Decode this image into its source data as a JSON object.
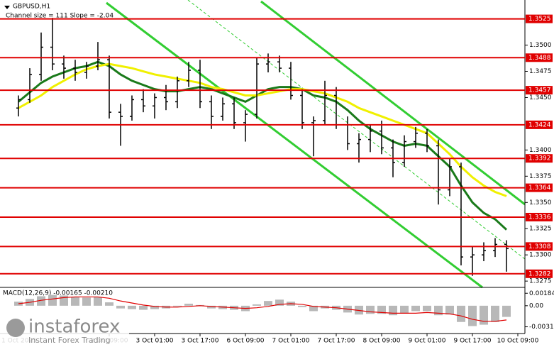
{
  "header": {
    "symbol": "GBPUSD,H1",
    "channel_info": "Channel size = 111  Slope = -2.04"
  },
  "brand": {
    "name": "instaforex",
    "tagline": "Instant Forex Trading"
  },
  "chart_data": [
    {
      "type": "candlestick",
      "categories": [
        "1 Oct 2025",
        null,
        null,
        null,
        null,
        null,
        null,
        null,
        "2 Oct 09:00",
        null,
        null,
        null,
        "3 Oct 01:00",
        null,
        null,
        null,
        "3 Oct 17:00",
        null,
        null,
        null,
        "6 Oct 09:00",
        null,
        null,
        null,
        "7 Oct 01:00",
        null,
        null,
        null,
        "7 Oct 17:00",
        null,
        null,
        null,
        "8 Oct 09:00",
        null,
        null,
        null,
        "9 Oct 01:00",
        null,
        null,
        null,
        "9 Oct 17:00",
        null,
        null,
        null,
        "10 Oct 09:00"
      ],
      "open": [
        1.344,
        1.3448,
        1.3472,
        1.3498,
        1.3482,
        1.3478,
        1.3474,
        1.348,
        1.3486,
        1.3436,
        1.3432,
        1.3448,
        1.3442,
        1.345,
        1.3446,
        1.3466,
        1.3476,
        1.3446,
        1.3432,
        1.3444,
        1.3426,
        1.3434,
        1.3482,
        1.3484,
        1.3478,
        1.3452,
        1.3426,
        1.3428,
        1.3452,
        1.3424,
        1.3406,
        1.341,
        1.3418,
        1.3402,
        1.3388,
        1.3408,
        1.3416,
        1.3404,
        1.3362,
        1.3384,
        1.3298,
        1.33,
        1.3304,
        1.331,
        null
      ],
      "high": [
        1.3452,
        1.3478,
        1.3512,
        1.3526,
        1.349,
        1.3486,
        1.3484,
        1.3503,
        1.349,
        1.3444,
        1.3452,
        1.3458,
        1.3454,
        1.3462,
        1.347,
        1.3484,
        1.3486,
        1.3452,
        1.345,
        1.345,
        1.3438,
        1.3488,
        1.3492,
        1.349,
        1.3484,
        1.3458,
        1.3432,
        1.3466,
        1.346,
        1.3432,
        1.3416,
        1.3424,
        1.3428,
        1.341,
        1.3414,
        1.3422,
        1.342,
        1.341,
        1.3392,
        1.3388,
        1.3308,
        1.3312,
        1.3316,
        1.3314,
        null
      ],
      "low": [
        1.3432,
        1.3445,
        1.3466,
        1.3476,
        1.3468,
        1.3466,
        1.3468,
        1.3476,
        1.343,
        1.3404,
        1.3428,
        1.3436,
        1.343,
        1.3438,
        1.344,
        1.346,
        1.344,
        1.342,
        1.3428,
        1.342,
        1.3408,
        1.343,
        1.3474,
        1.3474,
        1.3448,
        1.342,
        1.3394,
        1.3424,
        1.342,
        1.34,
        1.3388,
        1.3398,
        1.3396,
        1.3374,
        1.3384,
        1.3402,
        1.3398,
        1.3348,
        1.3356,
        1.329,
        1.328,
        1.3294,
        1.3298,
        1.3284,
        null
      ],
      "close": [
        1.3448,
        1.3472,
        1.3498,
        1.3482,
        1.3478,
        1.3474,
        1.348,
        1.3486,
        1.3436,
        1.3432,
        1.3448,
        1.3442,
        1.345,
        1.3446,
        1.3466,
        1.3476,
        1.3446,
        1.3432,
        1.3444,
        1.3426,
        1.3434,
        1.3482,
        1.3484,
        1.3478,
        1.3452,
        1.3426,
        1.3428,
        1.3452,
        1.3424,
        1.3406,
        1.341,
        1.3418,
        1.3402,
        1.3388,
        1.3408,
        1.3416,
        1.3404,
        1.3362,
        1.3384,
        1.3298,
        1.33,
        1.3304,
        1.331,
        1.3306,
        null
      ],
      "color": "#000000",
      "series": [
        {
          "color": "#1a7a1a",
          "values": [
            1.3446,
            1.3455,
            1.3464,
            1.347,
            1.3474,
            1.3478,
            1.348,
            1.3484,
            1.348,
            1.3472,
            1.3466,
            1.3462,
            1.3458,
            1.3456,
            1.3456,
            1.3458,
            1.346,
            1.3458,
            1.3454,
            1.345,
            1.3446,
            1.3452,
            1.3458,
            1.346,
            1.346,
            1.3458,
            1.3452,
            1.345,
            1.3446,
            1.3438,
            1.3428,
            1.342,
            1.3414,
            1.3408,
            1.3404,
            1.3406,
            1.3404,
            1.3394,
            1.3384,
            1.3366,
            1.335,
            1.334,
            1.3334,
            1.3324,
            null
          ]
        },
        {
          "color": "#f0f000",
          "values": [
            1.344,
            1.3446,
            1.3452,
            1.346,
            1.3466,
            1.3472,
            1.3477,
            1.348,
            1.3482,
            1.348,
            1.3478,
            1.3475,
            1.3472,
            1.347,
            1.3468,
            1.3466,
            1.3464,
            1.346,
            1.3458,
            1.3455,
            1.3452,
            1.3452,
            1.3454,
            1.3456,
            1.3458,
            1.3458,
            1.3456,
            1.3454,
            1.345,
            1.3446,
            1.344,
            1.3436,
            1.3432,
            1.3428,
            1.3424,
            1.342,
            1.3416,
            1.3406,
            1.3396,
            1.3384,
            1.3374,
            1.3366,
            1.336,
            1.3356,
            null
          ]
        }
      ],
      "levels": [
        {
          "value": 1.3525,
          "label": "1.3525"
        },
        {
          "value": 1.3488,
          "label": "1.3488"
        },
        {
          "value": 1.3457,
          "label": "1.3457"
        },
        {
          "value": 1.3424,
          "label": "1.3424"
        },
        {
          "value": 1.3392,
          "label": "1.3392"
        },
        {
          "value": 1.3364,
          "label": "1.3364"
        },
        {
          "value": 1.3336,
          "label": "1.3336"
        },
        {
          "value": 1.3308,
          "label": "1.3308"
        },
        {
          "value": 1.3282,
          "label": "1.3282"
        }
      ],
      "level_color": "#e00000",
      "ylim": [
        1.3269,
        1.3543
      ],
      "yticks": [
        {
          "value": 1.35,
          "label": "1.3500"
        },
        {
          "value": 1.3475,
          "label": "1.3475"
        },
        {
          "value": 1.345,
          "label": "1.3450"
        },
        {
          "value": 1.34,
          "label": "1.3400"
        },
        {
          "value": 1.3375,
          "label": "1.3375"
        },
        {
          "value": 1.335,
          "label": "1.3350"
        },
        {
          "value": 1.3325,
          "label": "1.3325"
        },
        {
          "value": 1.33,
          "label": "1.3300"
        },
        {
          "value": 1.3275,
          "label": "1.3275"
        }
      ]
    },
    {
      "type": "macd",
      "title": "MACD(12,26,9) -0.00165 -0.00210",
      "histogram": {
        "color": "#b8b8b8",
        "values": [
          0.0006,
          0.001,
          0.0014,
          0.0016,
          0.0015,
          0.0013,
          0.0012,
          0.0013,
          0.0005,
          -0.0004,
          -0.0005,
          -0.0006,
          -0.0005,
          -0.0004,
          -0.0001,
          0.0003,
          0.0001,
          -0.0004,
          -0.0005,
          -0.0006,
          -0.0008,
          0.0002,
          0.0007,
          0.0009,
          0.0006,
          -0.0002,
          -0.0008,
          -0.0004,
          -0.0006,
          -0.001,
          -0.0013,
          -0.0012,
          -0.0012,
          -0.0014,
          -0.0011,
          -0.0008,
          -0.0008,
          -0.0014,
          -0.0013,
          -0.0024,
          -0.003,
          -0.0028,
          -0.0024,
          -0.00165,
          null
        ]
      },
      "signal": {
        "color": "#e00000",
        "values": [
          0.0003,
          0.0005,
          0.0008,
          0.001,
          0.0012,
          0.0013,
          0.0013,
          0.0013,
          0.0011,
          0.0007,
          0.0004,
          0.0001,
          -0.0001,
          -0.0002,
          -0.0002,
          -0.0001,
          0.0,
          -0.0001,
          -0.0002,
          -0.0003,
          -0.0004,
          -0.0003,
          -0.0001,
          0.0002,
          0.0003,
          0.0002,
          -0.0001,
          -0.0002,
          -0.0003,
          -0.0005,
          -0.0007,
          -0.0009,
          -0.001,
          -0.0011,
          -0.0011,
          -0.0011,
          -0.001,
          -0.0011,
          -0.0012,
          -0.0015,
          -0.002,
          -0.0023,
          -0.0023,
          -0.0021,
          null
        ]
      },
      "ylim": [
        -0.0041,
        0.0026
      ],
      "yticks": [
        0.00184,
        {
          "value": 0,
          "label": "0.00"
        },
        -0.00311
      ]
    }
  ]
}
